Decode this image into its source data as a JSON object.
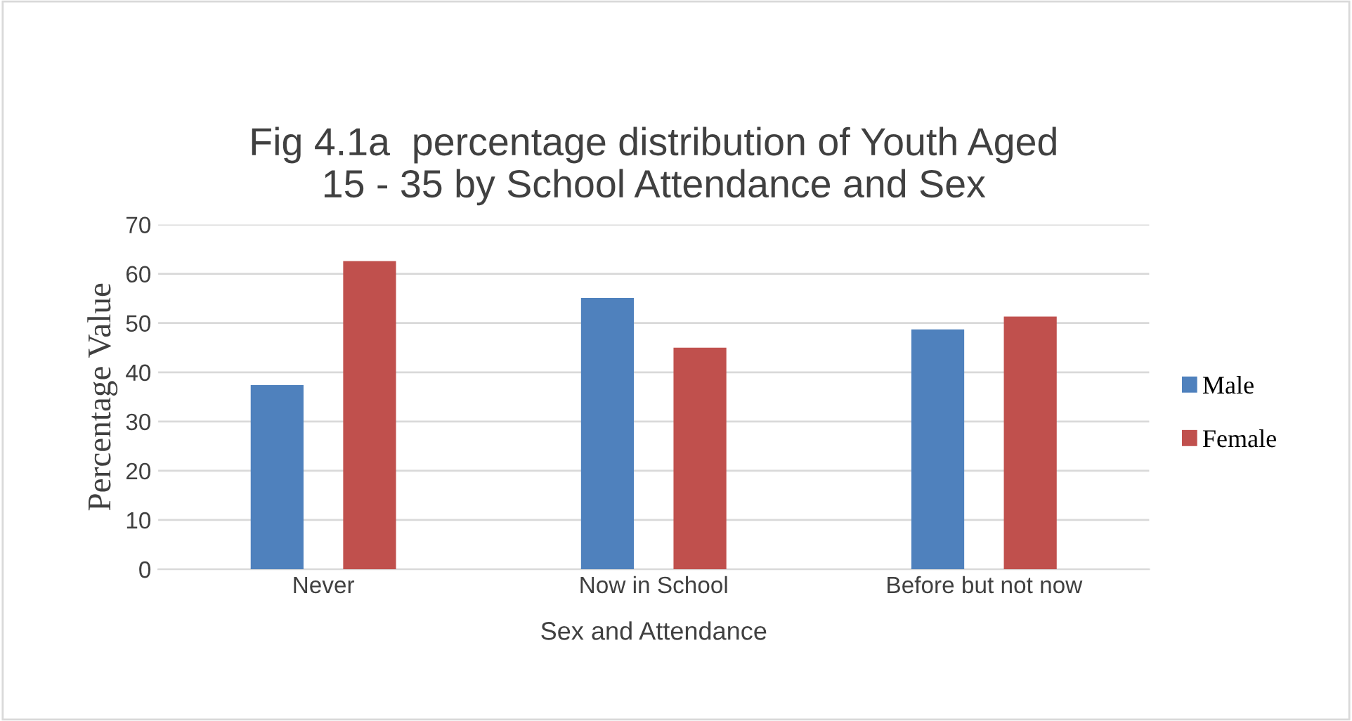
{
  "chart_data": {
    "type": "bar",
    "title": "Fig 4.1a  percentage distribution of Youth Aged\n15 - 35 by School Attendance and Sex",
    "xlabel": "Sex and Attendance",
    "ylabel": "Percentage Value",
    "categories": [
      "Never",
      "Now in School",
      "Before but not now"
    ],
    "series": [
      {
        "name": "Male",
        "color": "#4f81bd",
        "values": [
          37.4,
          55.1,
          48.7
        ]
      },
      {
        "name": "Female",
        "color": "#c0504d",
        "values": [
          62.6,
          45.0,
          51.3
        ]
      }
    ],
    "ylim": [
      0,
      70
    ],
    "yticks": [
      0,
      10,
      20,
      30,
      40,
      50,
      60,
      70
    ],
    "grid": "y",
    "legend": "right"
  }
}
